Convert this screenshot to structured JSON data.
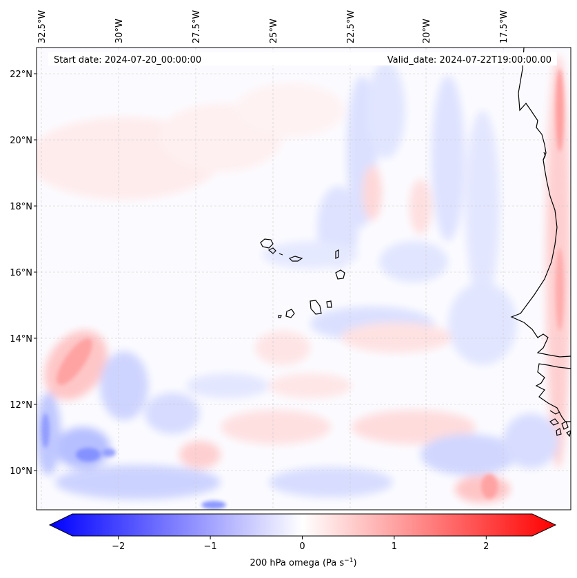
{
  "map": {
    "start_date": "Start date: 2024-07-20_00:00:00",
    "valid_date": "Valid_date: 2024-07-22T19:00:00.00",
    "lon_labels": [
      "32.5°W",
      "30°W",
      "27.5°W",
      "25°W",
      "22.5°W",
      "20°W",
      "17.5°W"
    ],
    "lat_labels": [
      "22°N",
      "20°N",
      "18°N",
      "16°N",
      "14°N",
      "12°N",
      "10°N"
    ],
    "colorbar": {
      "label": "200 hPa omega (Pa s",
      "label_sup": "−1",
      "label_close": ")",
      "ticks": [
        "−2",
        "−1",
        "0",
        "1",
        "2"
      ],
      "tick_values": [
        -2,
        -1,
        0,
        1,
        2
      ],
      "min": -2.5,
      "max": 2.5,
      "colors": {
        "negative": "#0000ff",
        "zero": "#ffffff",
        "positive": "#ff0000"
      }
    },
    "colors": {
      "coastline": "#000000",
      "grid": "#bfbfbf"
    }
  }
}
